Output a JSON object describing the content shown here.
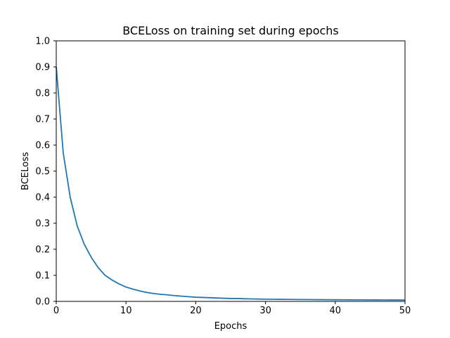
{
  "chart_data": {
    "type": "line",
    "title": "BCELoss on training set during epochs",
    "xlabel": "Epochs",
    "ylabel": "BCELoss",
    "xlim": [
      0,
      50
    ],
    "ylim": [
      0.0,
      1.0
    ],
    "x_ticks": [
      0,
      10,
      20,
      30,
      40,
      50
    ],
    "x_tick_labels": [
      "0",
      "10",
      "20",
      "30",
      "40",
      "50"
    ],
    "y_ticks": [
      0.0,
      0.1,
      0.2,
      0.3,
      0.4,
      0.5,
      0.6,
      0.7,
      0.8,
      0.9,
      1.0
    ],
    "y_tick_labels": [
      "0.0",
      "0.1",
      "0.2",
      "0.3",
      "0.4",
      "0.5",
      "0.6",
      "0.7",
      "0.8",
      "0.9",
      "1.0"
    ],
    "grid": false,
    "series": [
      {
        "color": "#1f77b4",
        "x": [
          0,
          1,
          2,
          3,
          4,
          5,
          6,
          7,
          8,
          9,
          10,
          11,
          12,
          13,
          14,
          15,
          16,
          17,
          18,
          19,
          20,
          21,
          22,
          23,
          24,
          25,
          26,
          27,
          28,
          29,
          30,
          31,
          32,
          33,
          34,
          35,
          36,
          37,
          38,
          39,
          40,
          41,
          42,
          43,
          44,
          45,
          46,
          47,
          48,
          49,
          50
        ],
        "y": [
          0.9,
          0.57,
          0.4,
          0.29,
          0.22,
          0.17,
          0.13,
          0.1,
          0.082,
          0.067,
          0.055,
          0.047,
          0.04,
          0.034,
          0.03,
          0.027,
          0.025,
          0.022,
          0.02,
          0.018,
          0.016,
          0.015,
          0.014,
          0.013,
          0.012,
          0.011,
          0.011,
          0.01,
          0.0095,
          0.009,
          0.0085,
          0.0082,
          0.008,
          0.0078,
          0.0075,
          0.0072,
          0.007,
          0.0068,
          0.0066,
          0.0064,
          0.0062,
          0.006,
          0.0059,
          0.0058,
          0.0057,
          0.0056,
          0.0055,
          0.0054,
          0.0053,
          0.0052,
          0.0051
        ]
      }
    ]
  }
}
